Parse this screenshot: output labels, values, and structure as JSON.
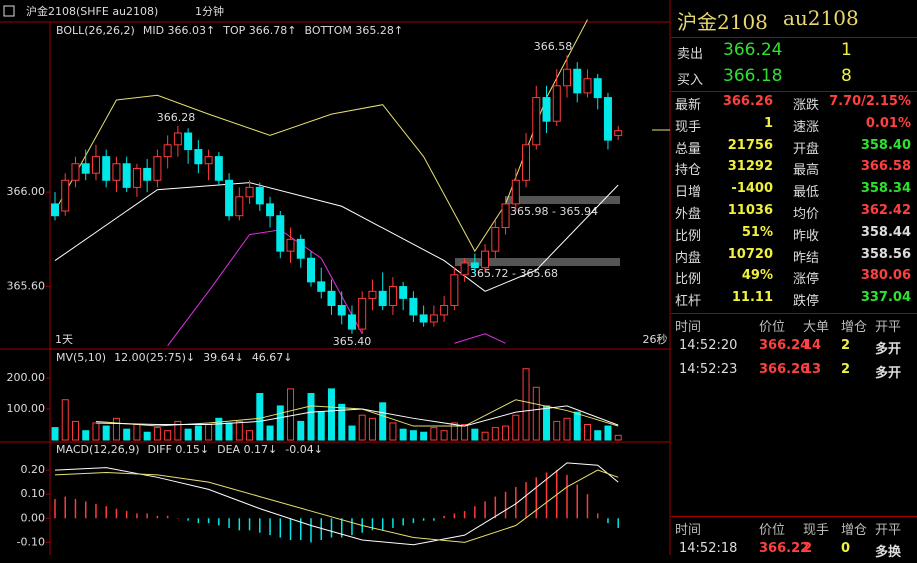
{
  "toolbar": {
    "symbol": "沪金2108(SHFE au2108)",
    "period": "1分钟"
  },
  "chart_data": [
    {
      "type": "candlestick",
      "indicator": "BOLL(26,26,2)",
      "up_color": "#ff3c3c",
      "down_color": "#00e8e8",
      "ylim": [
        365.34,
        366.72
      ],
      "yticks": [
        {
          "value": 365.6,
          "label": "365.60"
        },
        {
          "value": 366,
          "label": "366.00"
        }
      ],
      "candles": [
        [
          365.95,
          365.9,
          366.0,
          365.88
        ],
        [
          365.92,
          366.05,
          366.08,
          365.9
        ],
        [
          366.05,
          366.12,
          366.15,
          366.02
        ],
        [
          366.12,
          366.08,
          366.18,
          366.05
        ],
        [
          366.08,
          366.15,
          366.2,
          366.05
        ],
        [
          366.15,
          366.05,
          366.18,
          366.02
        ],
        [
          366.05,
          366.12,
          366.15,
          366.0
        ],
        [
          366.12,
          366.02,
          366.15,
          366.0
        ],
        [
          366.02,
          366.1,
          366.12,
          365.98
        ],
        [
          366.1,
          366.05,
          366.14,
          366.0
        ],
        [
          366.05,
          366.15,
          366.18,
          366.02
        ],
        [
          366.15,
          366.2,
          366.24,
          366.1
        ],
        [
          366.2,
          366.25,
          366.28,
          366.15
        ],
        [
          366.25,
          366.18,
          366.27,
          366.12
        ],
        [
          366.18,
          366.12,
          366.22,
          366.08
        ],
        [
          366.12,
          366.15,
          366.18,
          366.05
        ],
        [
          366.15,
          366.05,
          366.17,
          366.03
        ],
        [
          366.05,
          365.9,
          366.08,
          365.88
        ],
        [
          365.9,
          365.98,
          366.02,
          365.88
        ],
        [
          365.98,
          366.02,
          366.05,
          365.95
        ],
        [
          366.02,
          365.95,
          366.04,
          365.92
        ],
        [
          365.95,
          365.9,
          365.98,
          365.85
        ],
        [
          365.9,
          365.75,
          365.92,
          365.72
        ],
        [
          365.75,
          365.8,
          365.85,
          365.7
        ],
        [
          365.8,
          365.72,
          365.82,
          365.68
        ],
        [
          365.72,
          365.62,
          365.75,
          365.6
        ],
        [
          365.62,
          365.58,
          365.68,
          365.55
        ],
        [
          365.58,
          365.52,
          365.63,
          365.48
        ],
        [
          365.52,
          365.48,
          365.58,
          365.44
        ],
        [
          365.48,
          365.42,
          365.52,
          365.4
        ],
        [
          365.42,
          365.55,
          365.58,
          365.4
        ],
        [
          365.55,
          365.58,
          365.63,
          365.5
        ],
        [
          365.58,
          365.52,
          365.66,
          365.5
        ],
        [
          365.52,
          365.6,
          365.64,
          365.48
        ],
        [
          365.6,
          365.55,
          365.62,
          365.5
        ],
        [
          365.55,
          365.48,
          365.58,
          365.45
        ],
        [
          365.48,
          365.45,
          365.52,
          365.43
        ],
        [
          365.45,
          365.48,
          365.52,
          365.43
        ],
        [
          365.48,
          365.52,
          365.56,
          365.45
        ],
        [
          365.52,
          365.65,
          365.68,
          365.5
        ],
        [
          365.65,
          365.7,
          365.72,
          365.62
        ],
        [
          365.7,
          365.68,
          365.74,
          365.65
        ],
        [
          365.68,
          365.75,
          365.78,
          365.66
        ],
        [
          365.75,
          365.85,
          365.88,
          365.72
        ],
        [
          365.85,
          365.95,
          365.98,
          365.82
        ],
        [
          365.95,
          366.05,
          366.1,
          365.92
        ],
        [
          366.05,
          366.2,
          366.25,
          366.02
        ],
        [
          366.2,
          366.4,
          366.45,
          366.18
        ],
        [
          366.4,
          366.3,
          366.45,
          366.25
        ],
        [
          366.3,
          366.45,
          366.52,
          366.28
        ],
        [
          366.45,
          366.52,
          366.58,
          366.4
        ],
        [
          366.52,
          366.42,
          366.55,
          366.38
        ],
        [
          366.42,
          366.48,
          366.52,
          366.4
        ],
        [
          366.48,
          366.4,
          366.5,
          366.35
        ],
        [
          366.4,
          366.22,
          366.42,
          366.18
        ],
        [
          366.24,
          366.26,
          366.28,
          366.22
        ]
      ],
      "series": [
        {
          "name": "MID 366.03↑",
          "color": "#ffffff",
          "x": [
            0,
            10,
            19,
            28,
            38,
            42,
            47,
            55
          ],
          "values": [
            365.71,
            366.01,
            366.04,
            365.94,
            365.71,
            365.58,
            365.67,
            366.03
          ]
        },
        {
          "name": "TOP 366.78↑",
          "color": "#e8e070",
          "x": [
            0,
            6,
            10,
            15,
            21,
            27,
            32,
            36,
            41,
            44,
            48,
            52
          ],
          "values": [
            365.92,
            366.39,
            366.41,
            366.33,
            366.24,
            366.33,
            366.37,
            366.15,
            365.75,
            365.95,
            366.4,
            366.73
          ]
        },
        {
          "name": "BOTTOM 365.28↑",
          "color": "#e030e0",
          "x": [
            11,
            15,
            19,
            22,
            26,
            30,
            35,
            39,
            42,
            44
          ],
          "values": [
            365.35,
            365.58,
            365.82,
            365.84,
            365.72,
            365.4,
            null,
            365.36,
            365.4,
            365.36
          ]
        }
      ],
      "annotations": [
        "366.28",
        "366.58",
        "365.40",
        "1天",
        "26秒"
      ],
      "levels": [
        "365.98 - 365.94",
        "365.72 - 365.68"
      ]
    },
    {
      "type": "bar",
      "indicator": "MV(5,10)",
      "info": "12.00(25:75)↓",
      "ylim": [
        0,
        284
      ],
      "yticks": [
        {
          "value": 100,
          "label": "100.00"
        },
        {
          "value": 200,
          "label": "200.00"
        }
      ],
      "values": [
        40,
        130,
        60,
        30,
        55,
        45,
        70,
        35,
        50,
        25,
        40,
        30,
        60,
        35,
        45,
        50,
        70,
        55,
        60,
        30,
        150,
        45,
        110,
        165,
        60,
        150,
        90,
        165,
        115,
        45,
        80,
        70,
        120,
        55,
        35,
        30,
        25,
        40,
        30,
        55,
        50,
        35,
        25,
        40,
        45,
        80,
        230,
        170,
        110,
        60,
        70,
        90,
        50,
        30,
        45,
        15
      ],
      "series": [
        {
          "name": "39.64↓",
          "color": "#e8e070",
          "x": [
            4,
            10,
            15,
            20,
            25,
            30,
            35,
            40,
            45,
            50,
            55
          ],
          "values": [
            60,
            45,
            55,
            70,
            110,
            100,
            45,
            45,
            130,
            95,
            45
          ]
        },
        {
          "name": "46.67↓",
          "color": "#ffffff",
          "x": [
            4,
            10,
            15,
            20,
            25,
            30,
            35,
            40,
            45,
            50,
            55
          ],
          "values": [
            55,
            50,
            50,
            60,
            90,
            100,
            70,
            45,
            90,
            110,
            48
          ]
        }
      ]
    },
    {
      "type": "macd",
      "indicator": "MACD(12,26,9)",
      "hist_label": "-0.04↓",
      "ylim": [
        -0.14,
        0.3
      ],
      "yticks": [
        {
          "value": -0.1,
          "label": "-0.10"
        },
        {
          "value": 0,
          "label": "0.00"
        },
        {
          "value": 0.1,
          "label": "0.10"
        },
        {
          "value": 0.2,
          "label": "0.20"
        }
      ],
      "values": [
        0.08,
        0.09,
        0.08,
        0.07,
        0.06,
        0.05,
        0.04,
        0.03,
        0.02,
        0.02,
        0.01,
        0.01,
        0.0,
        -0.01,
        -0.02,
        -0.02,
        -0.03,
        -0.04,
        -0.05,
        -0.05,
        -0.06,
        -0.07,
        -0.08,
        -0.09,
        -0.09,
        -0.1,
        -0.09,
        -0.08,
        -0.08,
        -0.07,
        -0.06,
        -0.05,
        -0.05,
        -0.04,
        -0.03,
        -0.02,
        -0.01,
        -0.01,
        0.01,
        0.02,
        0.03,
        0.05,
        0.07,
        0.09,
        0.11,
        0.13,
        0.15,
        0.17,
        0.19,
        0.2,
        0.18,
        0.14,
        0.1,
        0.02,
        -0.02,
        -0.04
      ],
      "series": [
        {
          "name": "DIFF 0.15↓",
          "color": "#ffffff",
          "x": [
            0,
            5,
            10,
            15,
            20,
            25,
            30,
            35,
            40,
            45,
            50,
            53,
            55
          ],
          "values": [
            0.2,
            0.21,
            0.17,
            0.12,
            0.04,
            -0.03,
            -0.09,
            -0.11,
            -0.07,
            0.06,
            0.23,
            0.22,
            0.15
          ]
        },
        {
          "name": "DEA 0.17↓",
          "color": "#e8e070",
          "x": [
            0,
            5,
            10,
            15,
            20,
            25,
            30,
            35,
            40,
            45,
            50,
            53,
            55
          ],
          "values": [
            0.18,
            0.19,
            0.18,
            0.15,
            0.09,
            0.03,
            -0.03,
            -0.08,
            -0.1,
            -0.03,
            0.13,
            0.2,
            0.17
          ]
        }
      ]
    }
  ],
  "quote": {
    "name": "沪金2108",
    "code": "au2108",
    "ask": [
      "卖出",
      "366.24",
      "1"
    ],
    "bid": [
      "买入",
      "366.18",
      "8"
    ],
    "stats": [
      [
        "最新",
        "366.26",
        "涨跌",
        "7.70/2.15%"
      ],
      [
        "现手",
        "1",
        "速涨",
        "0.01%"
      ],
      [
        "总量",
        "21756",
        "开盘",
        "358.40"
      ],
      [
        "持仓",
        "31292",
        "最高",
        "366.58"
      ],
      [
        "日增",
        "-1400",
        "最低",
        "358.34"
      ],
      [
        "外盘",
        "11036",
        "均价",
        "362.42"
      ],
      [
        "比例",
        "51%",
        "昨收",
        "358.44"
      ],
      [
        "内盘",
        "10720",
        "昨结",
        "358.56"
      ],
      [
        "比例",
        "49%",
        "涨停",
        "380.06"
      ],
      [
        "杠杆",
        "11.11",
        "跌停",
        "337.04"
      ]
    ]
  },
  "trades": {
    "header": [
      "时间",
      "价位",
      "大单",
      "增仓",
      "开平"
    ],
    "rows": [
      [
        "14:52:20",
        "366.24",
        "14",
        "2",
        "多开"
      ],
      [
        "14:52:23",
        "366.26",
        "13",
        "2",
        "多开"
      ]
    ]
  },
  "ticks": {
    "header": [
      "时间",
      "价位",
      "现手",
      "增仓",
      "开平"
    ],
    "rows": [
      [
        "14:52:18",
        "366.22",
        "2",
        "0",
        "多换"
      ]
    ]
  }
}
